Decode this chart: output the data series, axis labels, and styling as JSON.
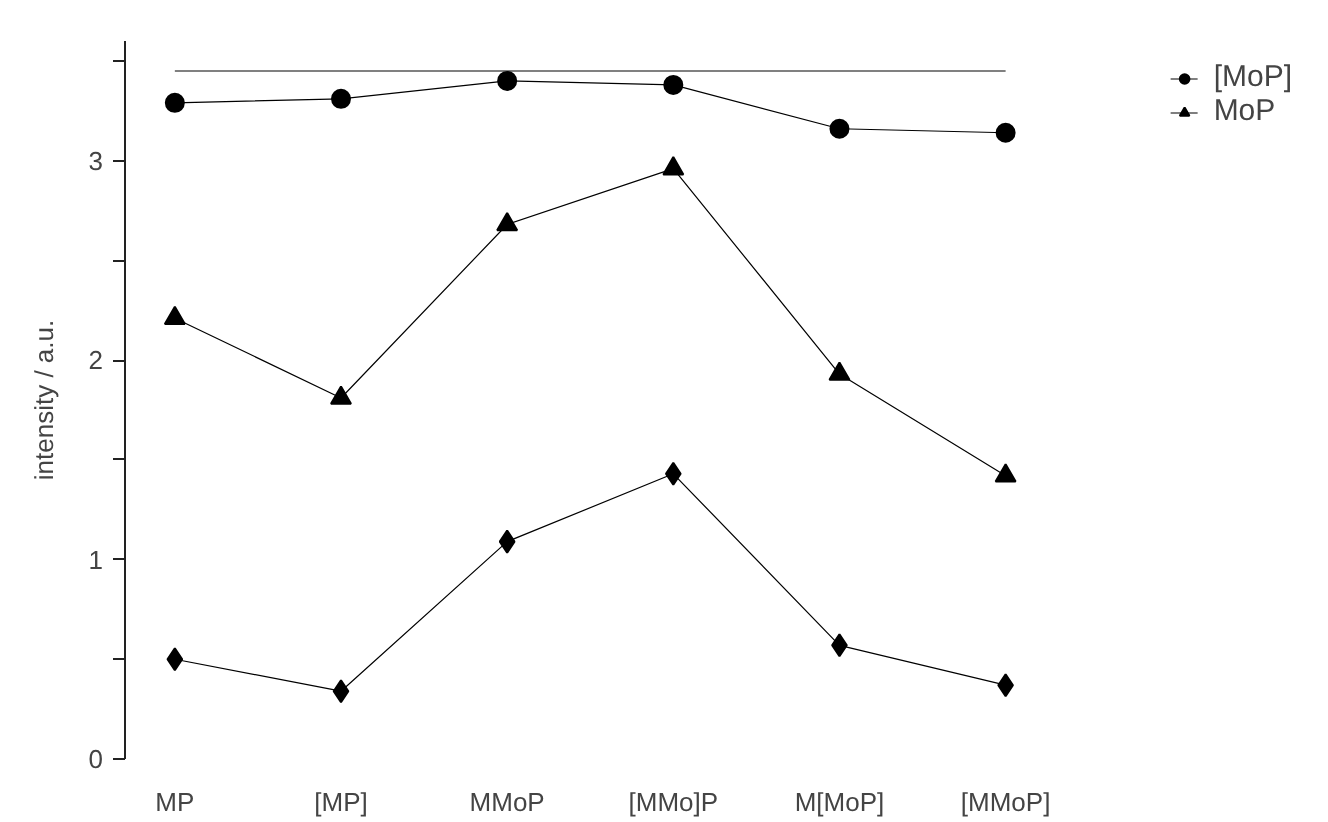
{
  "chart_data": {
    "type": "line",
    "ylabel": "intensity / a.u.",
    "categories": [
      "MP",
      "[MP]",
      "MMoP",
      "[MMo]P",
      "M[MoP]",
      "[MMoP]"
    ],
    "ylim": [
      0,
      3.6
    ],
    "yticks": [
      0,
      {
        "value": 0.5,
        "label": null
      },
      1,
      {
        "value": 1.5,
        "label": null
      },
      2,
      {
        "value": 2.5,
        "label": null
      },
      3,
      {
        "value": 3.5,
        "label": null
      }
    ],
    "grid": false,
    "legend": "right",
    "line_style": "solid",
    "series": [
      {
        "color": "#808080",
        "marker": "none",
        "values": [
          3.45,
          3.45,
          3.45,
          3.45,
          3.45,
          3.45
        ]
      },
      {
        "name": "[MoP]",
        "color": "#000000",
        "marker": "circle",
        "values": [
          3.29,
          3.31,
          3.4,
          3.38,
          3.16,
          3.14
        ]
      },
      {
        "name": "MoP",
        "color": "#000000",
        "marker": "triangle",
        "values": [
          2.21,
          1.81,
          2.68,
          2.96,
          1.93,
          1.42
        ]
      },
      {
        "color": "#000000",
        "marker": "diamond",
        "values": [
          0.5,
          0.34,
          1.09,
          1.43,
          0.57,
          0.37
        ]
      }
    ]
  }
}
